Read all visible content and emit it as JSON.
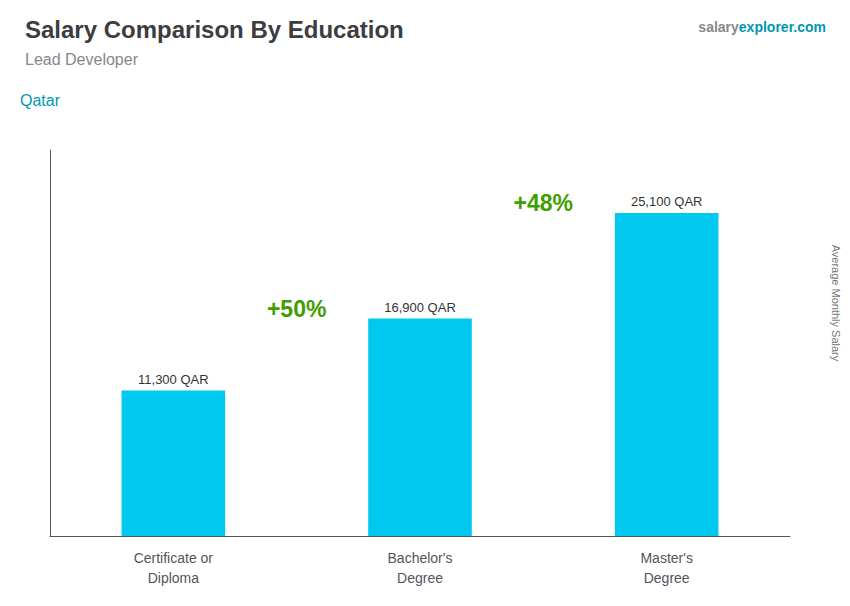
{
  "chart_data": {
    "type": "bar",
    "title": "Salary Comparison By Education",
    "subtitle": "Lead Developer",
    "ylabel": "Average Monthly Salary",
    "annotations": [
      "Qatar",
      "salary",
      "explorer.com",
      "+50%",
      "+48%"
    ],
    "categories": [
      "Certificate or\nDiploma",
      "Bachelor's\nDegree",
      "Master's\nDegree"
    ],
    "values": [
      11300,
      16900,
      25100
    ],
    "value_labels": [
      "11,300 QAR",
      "16,900 QAR",
      "25,100 QAR"
    ],
    "data_labels": true,
    "color": "#00c8ee",
    "ylim": [
      0,
      30000
    ],
    "grid": false,
    "tick_labels": "x"
  }
}
